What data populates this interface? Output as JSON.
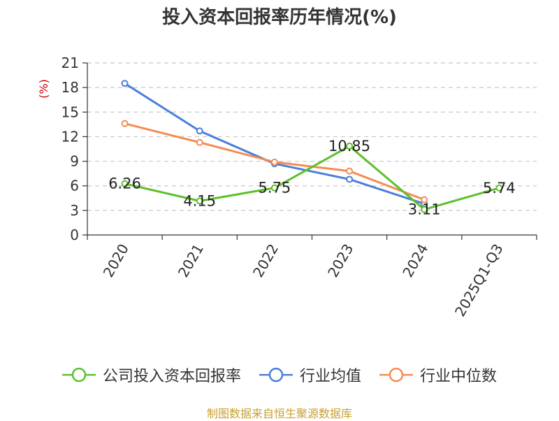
{
  "source": "制图数据来自恒生聚源数据库",
  "chart_data": {
    "type": "line",
    "title": "投入资本回报率历年情况(%)",
    "ylabel": "(%)",
    "categories": [
      "2020",
      "2021",
      "2022",
      "2023",
      "2024",
      "2025Q1-Q3"
    ],
    "ylim": [
      0,
      21
    ],
    "yticks": [
      0,
      3,
      6,
      9,
      12,
      15,
      18,
      21
    ],
    "grid": true,
    "legend_position": "bottom",
    "series": [
      {
        "name": "公司投入资本回报率",
        "color": "#5cc02c",
        "values": [
          6.26,
          4.15,
          5.75,
          10.85,
          3.11,
          5.74
        ],
        "labels": [
          "6.26",
          "4.15",
          "5.75",
          "10.85",
          "3.11",
          "5.74"
        ]
      },
      {
        "name": "行业均值",
        "color": "#4a7fd9",
        "values": [
          18.5,
          12.7,
          8.7,
          6.8,
          3.8,
          null
        ]
      },
      {
        "name": "行业中位数",
        "color": "#f48c54",
        "values": [
          13.6,
          11.3,
          8.9,
          7.8,
          4.3,
          null
        ]
      }
    ]
  }
}
